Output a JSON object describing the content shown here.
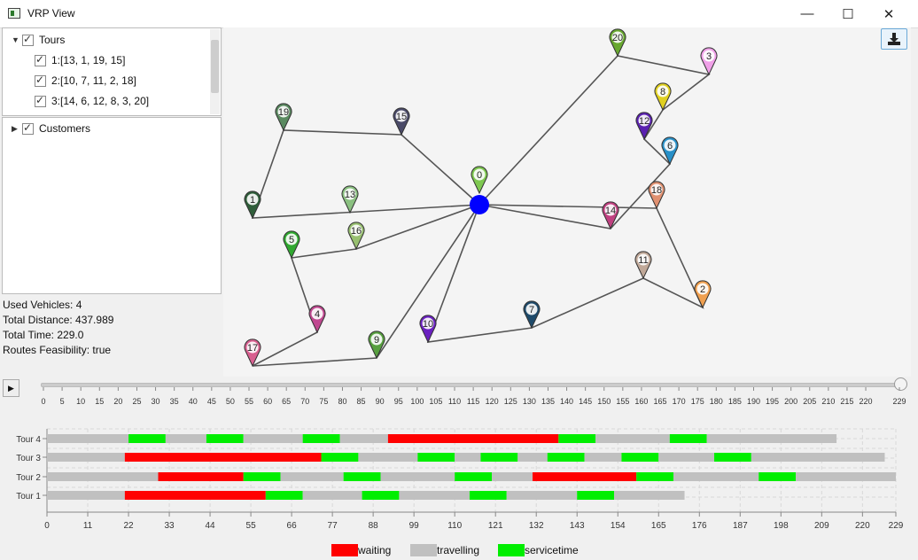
{
  "window": {
    "title": "VRP View",
    "minimize": "—",
    "maximize": "☐",
    "close": "✕"
  },
  "tree": {
    "tours_label": "Tours",
    "tours": [
      {
        "label": "1:[13, 1, 19, 15]"
      },
      {
        "label": "2:[10, 7, 11, 2, 18]"
      },
      {
        "label": "3:[14, 6, 12, 8, 3, 20]"
      }
    ],
    "customers_label": "Customers"
  },
  "stats": {
    "used_vehicles": "Used Vehicles: 4",
    "total_distance": "Total Distance: 437.989",
    "total_time": "Total Time: 229.0",
    "feasibility": "Routes Feasibility: true"
  },
  "map": {
    "depot_color": "#0000ff",
    "nodes": [
      {
        "id": "0",
        "color": "#7ec850"
      },
      {
        "id": "1",
        "color": "#2f5e3a"
      },
      {
        "id": "2",
        "color": "#f0a050"
      },
      {
        "id": "3",
        "color": "#f0a0e8"
      },
      {
        "id": "4",
        "color": "#c04890"
      },
      {
        "id": "5",
        "color": "#30a830"
      },
      {
        "id": "6",
        "color": "#2890c8"
      },
      {
        "id": "7",
        "color": "#1e4a6a"
      },
      {
        "id": "8",
        "color": "#e0d020"
      },
      {
        "id": "9",
        "color": "#58a040"
      },
      {
        "id": "10",
        "color": "#6a20c0"
      },
      {
        "id": "11",
        "color": "#c0a898"
      },
      {
        "id": "12",
        "color": "#5a20b0"
      },
      {
        "id": "13",
        "color": "#8ac080"
      },
      {
        "id": "14",
        "color": "#c04080"
      },
      {
        "id": "15",
        "color": "#4a4a68"
      },
      {
        "id": "16",
        "color": "#98c070"
      },
      {
        "id": "17",
        "color": "#d86090"
      },
      {
        "id": "18",
        "color": "#e09070"
      },
      {
        "id": "19",
        "color": "#5a8a60"
      },
      {
        "id": "20",
        "color": "#68a830"
      }
    ]
  },
  "slider": {
    "ticks": [
      "0",
      "5",
      "10",
      "15",
      "20",
      "25",
      "30",
      "35",
      "40",
      "45",
      "50",
      "55",
      "60",
      "65",
      "70",
      "75",
      "80",
      "85",
      "90",
      "95",
      "100",
      "105",
      "110",
      "115",
      "120",
      "125",
      "130",
      "135",
      "140",
      "145",
      "150",
      "155",
      "160",
      "165",
      "170",
      "175",
      "180",
      "185",
      "190",
      "195",
      "200",
      "205",
      "210",
      "215",
      "220",
      "229"
    ],
    "value": 229
  },
  "chart_data": {
    "type": "bar",
    "categories": [
      "Tour 4",
      "Tour 3",
      "Tour 2",
      "Tour 1"
    ],
    "xlim": [
      0,
      229
    ],
    "x_ticks": [
      "0",
      "11",
      "22",
      "33",
      "44",
      "55",
      "66",
      "77",
      "88",
      "99",
      "110",
      "121",
      "132",
      "143",
      "154",
      "165",
      "176",
      "187",
      "198",
      "209",
      "220",
      "229"
    ],
    "legend": [
      "waiting",
      "travelling",
      "servicetime"
    ],
    "colors": {
      "waiting": "#ff0000",
      "travelling": "#c0c0c0",
      "servicetime": "#00ee00"
    },
    "tours": [
      {
        "name": "Tour 4",
        "segments": [
          [
            "travelling",
            0,
            22
          ],
          [
            "servicetime",
            22,
            32
          ],
          [
            "travelling",
            32,
            43
          ],
          [
            "servicetime",
            43,
            53
          ],
          [
            "travelling",
            53,
            69
          ],
          [
            "servicetime",
            69,
            79
          ],
          [
            "travelling",
            79,
            92
          ],
          [
            "waiting",
            92,
            138
          ],
          [
            "servicetime",
            138,
            148
          ],
          [
            "travelling",
            148,
            168
          ],
          [
            "servicetime",
            168,
            178
          ],
          [
            "travelling",
            178,
            213
          ]
        ]
      },
      {
        "name": "Tour 3",
        "segments": [
          [
            "travelling",
            0,
            21
          ],
          [
            "waiting",
            21,
            74
          ],
          [
            "servicetime",
            74,
            84
          ],
          [
            "travelling",
            84,
            100
          ],
          [
            "servicetime",
            100,
            110
          ],
          [
            "travelling",
            110,
            117
          ],
          [
            "servicetime",
            117,
            127
          ],
          [
            "travelling",
            127,
            135
          ],
          [
            "servicetime",
            135,
            145
          ],
          [
            "travelling",
            145,
            155
          ],
          [
            "servicetime",
            155,
            165
          ],
          [
            "travelling",
            165,
            180
          ],
          [
            "servicetime",
            180,
            190
          ],
          [
            "travelling",
            190,
            226
          ]
        ]
      },
      {
        "name": "Tour 2",
        "segments": [
          [
            "travelling",
            0,
            30
          ],
          [
            "waiting",
            30,
            53
          ],
          [
            "servicetime",
            53,
            63
          ],
          [
            "travelling",
            63,
            80
          ],
          [
            "servicetime",
            80,
            90
          ],
          [
            "travelling",
            90,
            110
          ],
          [
            "servicetime",
            110,
            120
          ],
          [
            "travelling",
            120,
            131
          ],
          [
            "waiting",
            131,
            159
          ],
          [
            "servicetime",
            159,
            169
          ],
          [
            "travelling",
            169,
            192
          ],
          [
            "servicetime",
            192,
            202
          ],
          [
            "travelling",
            202,
            229
          ]
        ]
      },
      {
        "name": "Tour 1",
        "segments": [
          [
            "travelling",
            0,
            21
          ],
          [
            "waiting",
            21,
            59
          ],
          [
            "servicetime",
            59,
            69
          ],
          [
            "travelling",
            69,
            85
          ],
          [
            "servicetime",
            85,
            95
          ],
          [
            "travelling",
            95,
            114
          ],
          [
            "servicetime",
            114,
            124
          ],
          [
            "travelling",
            124,
            143
          ],
          [
            "servicetime",
            143,
            153
          ],
          [
            "travelling",
            153,
            172
          ]
        ]
      }
    ]
  }
}
